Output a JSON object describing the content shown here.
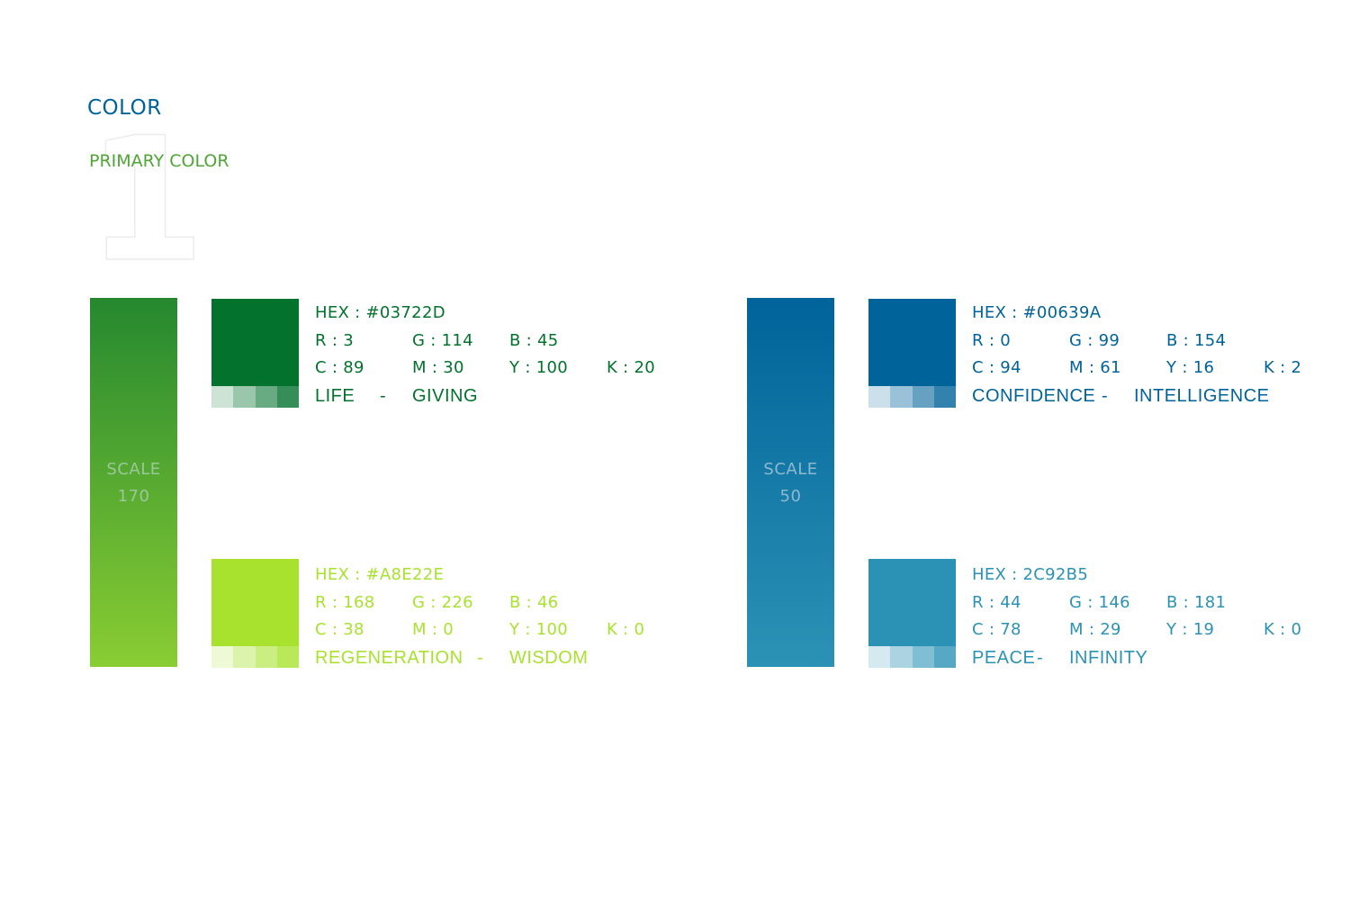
{
  "header": {
    "title": "COLOR",
    "numeral": "1",
    "subtitle": "PRIMARY COLOR"
  },
  "groups": [
    {
      "scale": {
        "label": "SCALE",
        "value": "170",
        "gradient_top": "#25882F",
        "gradient_bottom": "#8ACD33",
        "text_color": "#9BC89A"
      },
      "colors": [
        {
          "hex": "HEX : #03722D",
          "swatch": "#03722D",
          "text_color": "#03722D",
          "r": "R : 3",
          "g": "G : 114",
          "b": "B : 45",
          "c": "C : 89",
          "m": "M : 30",
          "y": "Y : 100",
          "k": "K : 20",
          "word1": "LIFE",
          "dash": "-",
          "word2": "GIVING",
          "tints": [
            "#CDE3D5",
            "#9AC7AB",
            "#68AA81",
            "#358E57"
          ]
        },
        {
          "hex": "HEX : #A8E22E",
          "swatch": "#A8E22E",
          "text_color": "#A8E22E",
          "r": "R : 168",
          "g": "G : 226",
          "b": "B : 46",
          "c": "C : 38",
          "m": "M : 0",
          "y": "Y : 100",
          "k": "K : 0",
          "word1": "REGENERATION",
          "dash": "-",
          "word2": "WISDOM",
          "tints": [
            "#EEF9D5",
            "#DCF3AB",
            "#CBEE82",
            "#B9E858"
          ]
        }
      ]
    },
    {
      "scale": {
        "label": "SCALE",
        "value": "50",
        "gradient_top": "#00639A",
        "gradient_bottom": "#2C92B5",
        "text_color": "#8DB8D0"
      },
      "colors": [
        {
          "hex": "HEX : #00639A",
          "swatch": "#00639A",
          "text_color": "#00639A",
          "r": "R : 0",
          "g": "G : 99",
          "b": "B : 154",
          "c": "C : 94",
          "m": "M : 61",
          "y": "Y : 16",
          "k": "K : 2",
          "word1": "CONFIDENCE",
          "dash": "-",
          "word2": "INTELLIGENCE",
          "tints": [
            "#CCE0EB",
            "#99C1D7",
            "#66A1C2",
            "#3382AE"
          ]
        },
        {
          "hex": "HEX : 2C92B5",
          "swatch": "#2C92B5",
          "text_color": "#2C92B5",
          "r": "R : 44",
          "g": "G : 146",
          "b": "B : 181",
          "c": "C : 78",
          "m": "M : 29",
          "y": "Y : 19",
          "k": "K : 0",
          "word1": "PEACE",
          "dash": "-",
          "word2": "INFINITY",
          "tints": [
            "#D5E9F0",
            "#ABD3E1",
            "#80BED3",
            "#56A8C4"
          ]
        }
      ]
    }
  ]
}
